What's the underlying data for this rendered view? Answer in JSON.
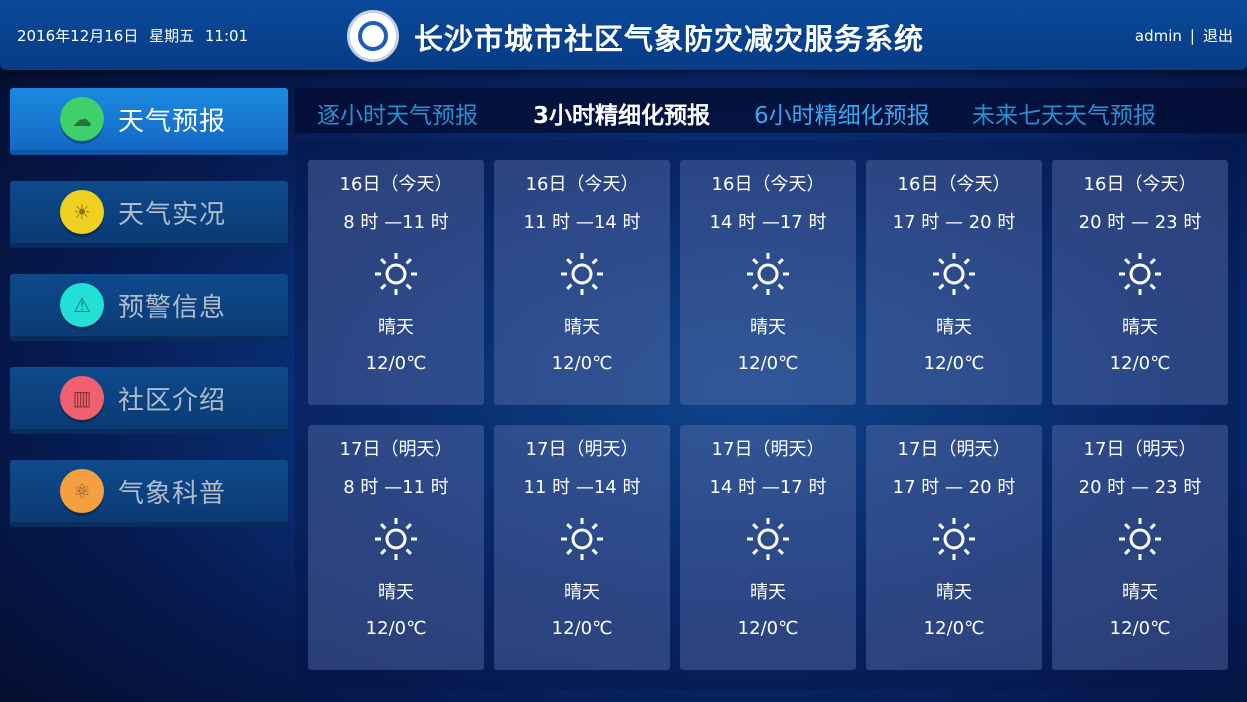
{
  "header": {
    "datetime": "2016年12月16日  星期五   11:01",
    "title": "长沙市城市社区气象防灾减灾服务系统",
    "user": "admin",
    "separator": "|",
    "logout": "退出"
  },
  "sidebar": {
    "items": [
      {
        "label": "天气预报",
        "icon": "cloud-sun-icon",
        "color": "#3ed06a",
        "active": true
      },
      {
        "label": "天气实况",
        "icon": "sun-icon",
        "color": "#f0d020",
        "active": false
      },
      {
        "label": "预警信息",
        "icon": "warning-icon",
        "color": "#20e0d8",
        "active": false
      },
      {
        "label": "社区介绍",
        "icon": "building-icon",
        "color": "#f06070",
        "active": false
      },
      {
        "label": "气象科普",
        "icon": "atom-icon",
        "color": "#f5a040",
        "active": false
      }
    ]
  },
  "tabs": [
    {
      "label": "逐小时天气预报"
    },
    {
      "label": "3小时精细化预报",
      "selected": true
    },
    {
      "label": "6小时精细化预报"
    },
    {
      "label": "未来七天天气预报"
    }
  ],
  "forecast": [
    {
      "day": "16日（今天）",
      "time": "8 时 —11 时",
      "weather": "晴天",
      "temp": "12/0℃",
      "icon": "sun-icon"
    },
    {
      "day": "16日（今天）",
      "time": "11 时 —14 时",
      "weather": "晴天",
      "temp": "12/0℃",
      "icon": "sun-icon"
    },
    {
      "day": "16日（今天）",
      "time": "14 时 —17 时",
      "weather": "晴天",
      "temp": "12/0℃",
      "icon": "sun-icon"
    },
    {
      "day": "16日（今天）",
      "time": "17 时 — 20 时",
      "weather": "晴天",
      "temp": "12/0℃",
      "icon": "sun-icon"
    },
    {
      "day": "16日（今天）",
      "time": "20 时 — 23 时",
      "weather": "晴天",
      "temp": "12/0℃",
      "icon": "sun-icon"
    },
    {
      "day": "17日（明天）",
      "time": "8 时 —11 时",
      "weather": "晴天",
      "temp": "12/0℃",
      "icon": "sun-icon"
    },
    {
      "day": "17日（明天）",
      "time": "11 时 —14 时",
      "weather": "晴天",
      "temp": "12/0℃",
      "icon": "sun-icon"
    },
    {
      "day": "17日（明天）",
      "time": "14 时 —17 时",
      "weather": "晴天",
      "temp": "12/0℃",
      "icon": "sun-icon"
    },
    {
      "day": "17日（明天）",
      "time": "17 时 — 20 时",
      "weather": "晴天",
      "temp": "12/0℃",
      "icon": "sun-icon"
    },
    {
      "day": "17日（明天）",
      "time": "20 时 — 23 时",
      "weather": "晴天",
      "temp": "12/0℃",
      "icon": "sun-icon"
    }
  ]
}
